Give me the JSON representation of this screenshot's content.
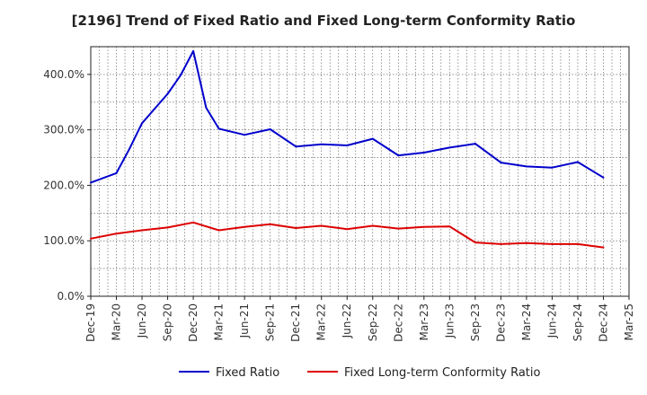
{
  "chart_data": {
    "type": "line",
    "title": "[2196]  Trend of Fixed Ratio and Fixed Long-term Conformity Ratio",
    "xlabel": "",
    "ylabel": "",
    "ylim": [
      0,
      450
    ],
    "y_ticks": [
      0,
      100,
      200,
      300,
      400
    ],
    "y_tick_labels": [
      "0.0%",
      "100.0%",
      "200.0%",
      "300.0%",
      "400.0%"
    ],
    "x_tick_labels": [
      "Dec-19",
      "Mar-20",
      "Jun-20",
      "Sep-20",
      "Dec-20",
      "Mar-21",
      "Jun-21",
      "Sep-21",
      "Dec-21",
      "Mar-22",
      "Jun-22",
      "Sep-22",
      "Dec-22",
      "Mar-23",
      "Jun-23",
      "Sep-23",
      "Dec-23",
      "Mar-24",
      "Jun-24",
      "Sep-24",
      "Dec-24",
      "Mar-25"
    ],
    "grid": true,
    "legend_position": "bottom",
    "series": [
      {
        "name": "Fixed Ratio",
        "color": "#0000cc",
        "x": [
          "Dec-19",
          "Mar-20",
          "Jun-20",
          "Sep-20",
          "Dec-20",
          "Mar-21",
          "Jun-21",
          "Sep-21",
          "Dec-21",
          "Mar-22",
          "Jun-22",
          "Sep-22",
          "Dec-22",
          "Mar-23",
          "Jun-23",
          "Sep-23",
          "Dec-23",
          "Mar-24",
          "Jun-24",
          "Sep-24",
          "Dec-24"
        ],
        "values": [
          205,
          222,
          312,
          365,
          442,
          302,
          291,
          301,
          270,
          274,
          272,
          284,
          254,
          259,
          268,
          275,
          241,
          234,
          232,
          242,
          214
        ],
        "extra_points": [
          {
            "x_index": 1.5,
            "value": 265
          },
          {
            "x_index": 3.5,
            "value": 398
          },
          {
            "x_index": 4.5,
            "value": 340
          }
        ]
      },
      {
        "name": "Fixed Long-term Conformity Ratio",
        "color": "#dd0000",
        "x": [
          "Dec-19",
          "Mar-20",
          "Jun-20",
          "Sep-20",
          "Dec-20",
          "Mar-21",
          "Jun-21",
          "Sep-21",
          "Dec-21",
          "Mar-22",
          "Jun-22",
          "Sep-22",
          "Dec-22",
          "Mar-23",
          "Jun-23",
          "Sep-23",
          "Dec-23",
          "Mar-24",
          "Jun-24",
          "Sep-24",
          "Dec-24"
        ],
        "values": [
          104,
          113,
          119,
          124,
          133,
          119,
          125,
          130,
          123,
          127,
          121,
          127,
          122,
          125,
          126,
          97,
          94,
          96,
          94,
          94,
          88
        ],
        "extra_points": []
      }
    ]
  }
}
